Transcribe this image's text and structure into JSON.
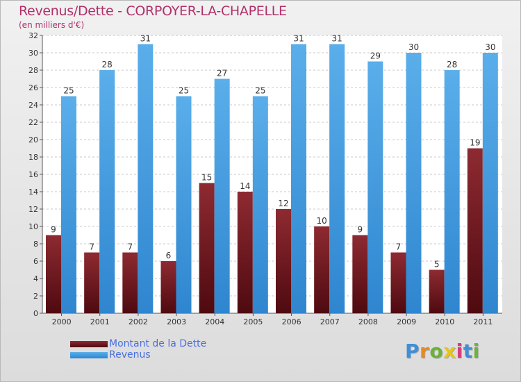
{
  "chart_data": {
    "type": "bar",
    "title": "Revenus/Dette - CORPOYER-LA-CHAPELLE",
    "subtitle": "(en milliers d'€)",
    "xlabel": "",
    "ylabel": "",
    "categories": [
      "2000",
      "2001",
      "2002",
      "2003",
      "2004",
      "2005",
      "2006",
      "2007",
      "2008",
      "2009",
      "2010",
      "2011"
    ],
    "series": [
      {
        "name": "Montant de la Dette",
        "color": "#7a1a22",
        "values": [
          9,
          7,
          7,
          6,
          15,
          14,
          12,
          10,
          9,
          7,
          5,
          19
        ]
      },
      {
        "name": "Revenus",
        "color": "#4aa3e6",
        "values": [
          25,
          28,
          31,
          25,
          27,
          25,
          31,
          31,
          29,
          30,
          28,
          30
        ]
      }
    ],
    "ylim": [
      0,
      32
    ],
    "yticks": [
      0,
      2,
      4,
      6,
      8,
      10,
      12,
      14,
      16,
      18,
      20,
      22,
      24,
      26,
      28,
      30,
      32
    ],
    "grid": true,
    "legend_position": "bottom-left"
  },
  "logo": {
    "text": "Proxiti",
    "colors": [
      "#3f8fd8",
      "#e88a1e",
      "#6cb23a",
      "#e8c51a",
      "#d83a7a",
      "#3f8fd8",
      "#6cb23a"
    ]
  }
}
